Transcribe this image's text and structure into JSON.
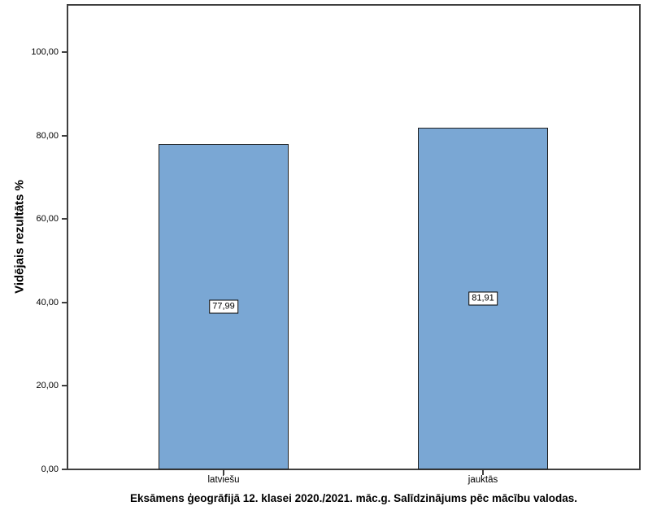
{
  "chart_data": {
    "type": "bar",
    "title": "Eksāmens ģeogrāfijā 12. klasei 2020./2021. māc.g. Salīdzinājums pēc mācību valodas.",
    "xlabel": "",
    "ylabel": "Vidējais rezultāts %",
    "categories": [
      "latviešu",
      "jauktās"
    ],
    "values": [
      77.99,
      81.91
    ],
    "value_labels": [
      "77,99",
      "81,91"
    ],
    "ytick_values": [
      0,
      20,
      40,
      60,
      80,
      100
    ],
    "ytick_labels": [
      "0,00",
      "20,00",
      "40,00",
      "60,00",
      "80,00",
      "100,00"
    ],
    "ylim": [
      0,
      111.5
    ],
    "grid": false,
    "legend": "none",
    "bar_color": "#7AA7D4",
    "bar_border_color": "#1F1F1F"
  },
  "colors": {
    "background": "#FFFFFF",
    "frame": "#3F3F3F",
    "bar_fill": "#7AA7D4",
    "bar_border": "#1F1F1F",
    "text": "#000000",
    "value_label_bg": "#FFFFFF",
    "value_label_border": "#000000"
  }
}
